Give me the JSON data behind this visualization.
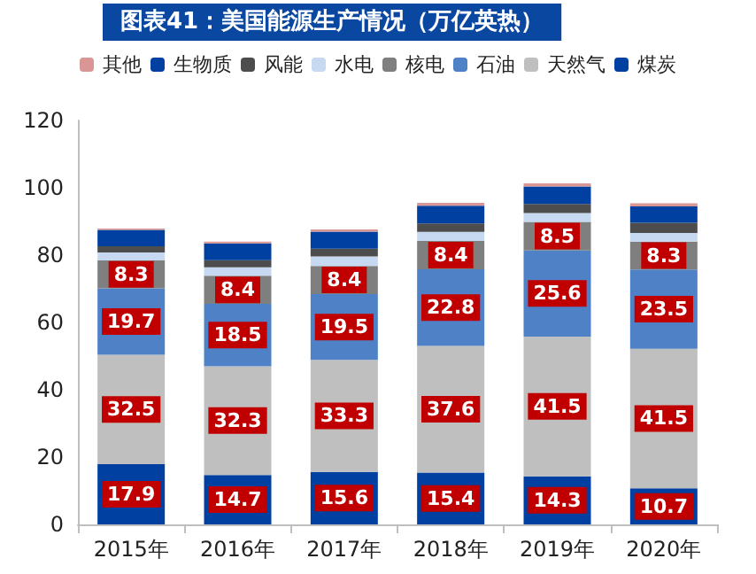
{
  "chart_data": {
    "type": "bar",
    "title": "图表41：美国能源生产情况（万亿英热）",
    "categories": [
      "2015年",
      "2016年",
      "2017年",
      "2018年",
      "2019年",
      "2020年"
    ],
    "stacked": true,
    "ylim": [
      0,
      120
    ],
    "yticks": [
      0,
      20,
      40,
      60,
      80,
      100,
      120
    ],
    "grid": false,
    "legend": "top",
    "series": [
      {
        "name": "煤炭",
        "color": "#0040a0",
        "values": [
          17.9,
          14.7,
          15.6,
          15.4,
          14.3,
          10.7
        ],
        "value_labels": [
          "17.9",
          "14.7",
          "15.6",
          "15.4",
          "14.3",
          "10.7"
        ]
      },
      {
        "name": "天然气",
        "color": "#bfbfbf",
        "values": [
          32.5,
          32.3,
          33.3,
          37.6,
          41.5,
          41.5
        ],
        "value_labels": [
          "32.5",
          "32.3",
          "33.3",
          "37.6",
          "41.5",
          "41.5"
        ]
      },
      {
        "name": "石油",
        "color": "#4f81c6",
        "values": [
          19.7,
          18.5,
          19.5,
          22.8,
          25.6,
          23.5
        ],
        "value_labels": [
          "19.7",
          "18.5",
          "19.5",
          "22.8",
          "25.6",
          "23.5"
        ]
      },
      {
        "name": "核电",
        "color": "#7f7f7f",
        "values": [
          8.3,
          8.4,
          8.4,
          8.4,
          8.5,
          8.3
        ],
        "value_labels": [
          "8.3",
          "8.4",
          "8.4",
          "8.4",
          "8.5",
          "8.3"
        ]
      },
      {
        "name": "水电",
        "color": "#c6d9f0",
        "values": [
          2.4,
          2.5,
          2.8,
          2.7,
          2.6,
          2.6
        ]
      },
      {
        "name": "风能",
        "color": "#4d4d4d",
        "values": [
          1.8,
          2.1,
          2.3,
          2.5,
          2.7,
          3.0
        ]
      },
      {
        "name": "生物质",
        "color": "#0040a0",
        "values": [
          4.9,
          5.0,
          5.1,
          5.3,
          5.2,
          4.9
        ]
      },
      {
        "name": "其他",
        "color": "#d99694",
        "values": [
          0.4,
          0.5,
          0.6,
          0.8,
          0.9,
          0.9
        ]
      }
    ]
  }
}
